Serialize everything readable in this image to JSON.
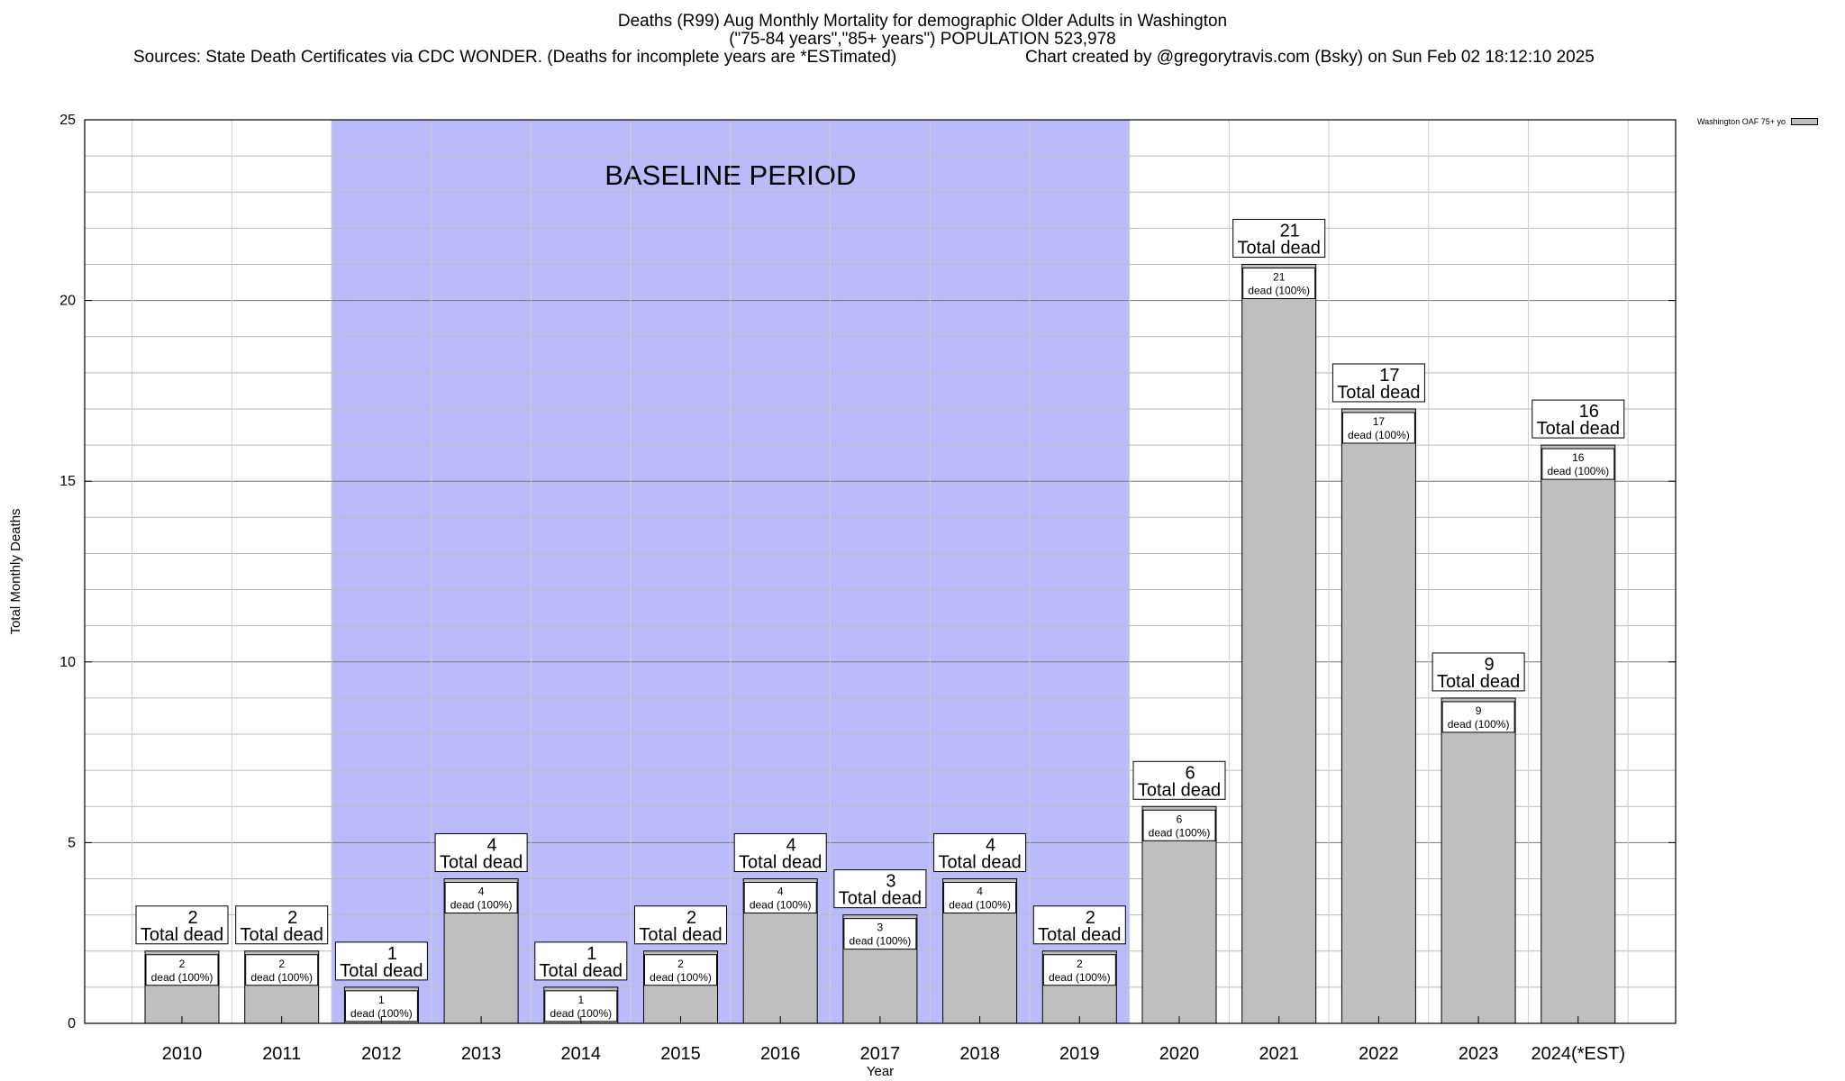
{
  "chart_data": {
    "type": "bar",
    "title": "Deaths (R99) Aug Monthly Mortality for demographic Older Adults in Washington",
    "subtitle": "(\"75-84 years\",\"85+ years\") POPULATION 523,978",
    "source": "Sources: State Death Certificates via CDC WONDER. (Deaths for incomplete years are *ESTimated)",
    "credit": "Chart created by @gregorytravis.com (Bsky) on Sun Feb 02 18:12:10 2025",
    "xlabel": "Year",
    "ylabel": "Total Monthly Deaths",
    "ylim": [
      0,
      25
    ],
    "yticks": [
      0,
      5,
      10,
      15,
      20,
      25
    ],
    "categories": [
      "2010",
      "2011",
      "2012",
      "2013",
      "2014",
      "2015",
      "2016",
      "2017",
      "2018",
      "2019",
      "2020",
      "2021",
      "2022",
      "2023",
      "2024(*EST)"
    ],
    "series": [
      {
        "name": "Washington OAF 75+ yo",
        "values": [
          2,
          2,
          1,
          4,
          1,
          2,
          4,
          3,
          4,
          2,
          6,
          21,
          17,
          9,
          16
        ]
      }
    ],
    "baseline": {
      "label": "BASELINE PERIOD",
      "start": "2012",
      "end": "2019",
      "color": "#bbbbfc"
    },
    "total_label": "Total dead",
    "inner_label": "dead (100%)",
    "bar_color": "#bfbfbf",
    "grid": true,
    "legend": "top-right"
  }
}
